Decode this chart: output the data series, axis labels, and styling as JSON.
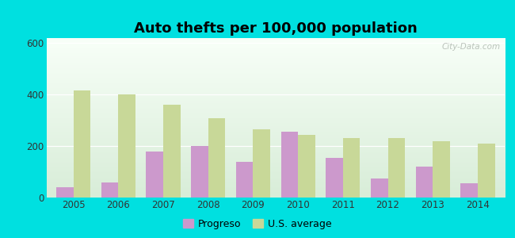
{
  "title": "Auto thefts per 100,000 population",
  "years": [
    2005,
    2006,
    2007,
    2008,
    2009,
    2010,
    2011,
    2012,
    2013,
    2014
  ],
  "progreso": [
    40,
    60,
    180,
    200,
    140,
    255,
    155,
    75,
    120,
    55
  ],
  "us_average": [
    415,
    400,
    360,
    310,
    265,
    245,
    230,
    230,
    220,
    210
  ],
  "progreso_color": "#cc99cc",
  "us_avg_color": "#c8d898",
  "ylim": [
    0,
    620
  ],
  "yticks": [
    0,
    200,
    400,
    600
  ],
  "outer_bg": "#00e0e0",
  "bar_width": 0.38,
  "legend_labels": [
    "Progreso",
    "U.S. average"
  ],
  "watermark": "City-Data.com",
  "title_fontsize": 13,
  "tick_fontsize": 8.5,
  "legend_fontsize": 9
}
